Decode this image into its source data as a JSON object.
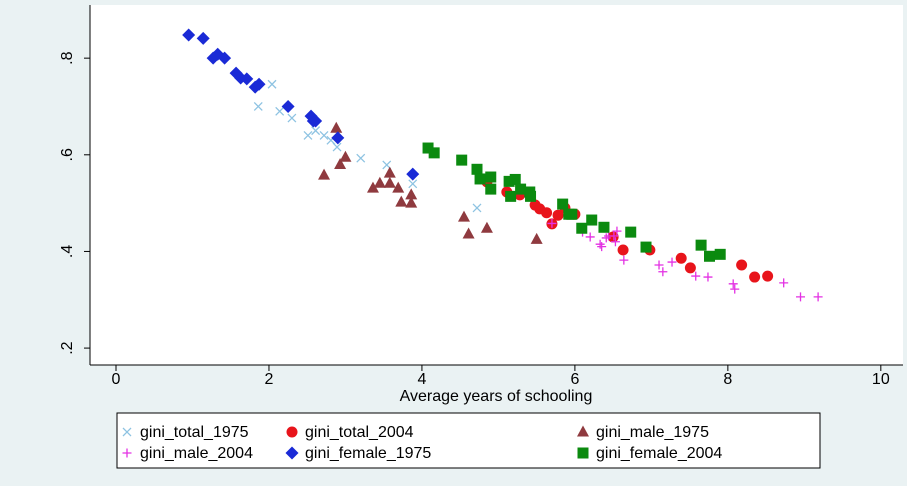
{
  "chart_data": {
    "type": "scatter",
    "x_label": "Average years of schooling",
    "xlim": [
      -0.34,
      10.29
    ],
    "ylim": [
      0.165,
      0.91
    ],
    "xticks": [
      0,
      2,
      4,
      6,
      8,
      10
    ],
    "yticks": [
      {
        "value": 0.2,
        "label": ".2"
      },
      {
        "value": 0.4,
        "label": ".4"
      },
      {
        "value": 0.6,
        "label": ".6"
      },
      {
        "value": 0.8,
        "label": ".8"
      }
    ],
    "grid": false,
    "legend": "bottom",
    "series": [
      {
        "name": "gini_total_1975",
        "color": "#8ec3e2",
        "marker": "x",
        "x": [
          1.86,
          2.04,
          2.14,
          2.3,
          2.51,
          2.61,
          2.72,
          2.81,
          2.89,
          3.2,
          3.54,
          3.88,
          4.72
        ],
        "y": [
          0.7,
          0.746,
          0.69,
          0.676,
          0.64,
          0.65,
          0.64,
          0.63,
          0.616,
          0.593,
          0.579,
          0.54,
          0.49
        ]
      },
      {
        "name": "gini_total_2004",
        "color": "#e8141b",
        "marker": "circle",
        "x": [
          4.85,
          5.11,
          5.28,
          5.48,
          5.54,
          5.63,
          5.7,
          5.78,
          5.87,
          6.0,
          6.5,
          6.63,
          6.98,
          7.39,
          7.51,
          8.18,
          8.35,
          8.52
        ],
        "y": [
          0.544,
          0.523,
          0.517,
          0.496,
          0.488,
          0.48,
          0.457,
          0.475,
          0.49,
          0.477,
          0.43,
          0.403,
          0.403,
          0.386,
          0.366,
          0.372,
          0.347,
          0.349
        ]
      },
      {
        "name": "gini_male_1975",
        "color": "#8f3a3f",
        "marker": "triangle",
        "x": [
          2.88,
          3.0,
          2.93,
          2.72,
          3.36,
          3.45,
          3.58,
          3.58,
          3.69,
          3.73,
          3.86,
          3.86,
          4.55,
          4.61,
          4.85,
          5.5
        ],
        "y": [
          0.655,
          0.595,
          0.58,
          0.558,
          0.531,
          0.541,
          0.562,
          0.541,
          0.531,
          0.502,
          0.517,
          0.5,
          0.471,
          0.436,
          0.448,
          0.425
        ]
      },
      {
        "name": "gini_male_2004",
        "color": "#e331e3",
        "marker": "plus",
        "x": [
          5.7,
          6.1,
          6.2,
          6.33,
          6.35,
          6.41,
          6.44,
          6.51,
          6.55,
          6.53,
          6.64,
          7.1,
          7.15,
          7.27,
          7.58,
          7.74,
          8.07,
          8.09,
          8.73,
          8.95,
          9.18
        ],
        "y": [
          0.458,
          0.44,
          0.43,
          0.415,
          0.41,
          0.428,
          0.432,
          0.432,
          0.442,
          0.42,
          0.382,
          0.372,
          0.358,
          0.378,
          0.349,
          0.347,
          0.333,
          0.322,
          0.335,
          0.306,
          0.306
        ]
      },
      {
        "name": "gini_female_1975",
        "color": "#1a2ad6",
        "marker": "diamond",
        "x": [
          0.95,
          1.14,
          1.27,
          1.33,
          1.42,
          1.57,
          1.63,
          1.71,
          1.82,
          1.87,
          2.25,
          2.55,
          2.58,
          2.61,
          2.9,
          3.88
        ],
        "y": [
          0.848,
          0.841,
          0.8,
          0.808,
          0.8,
          0.769,
          0.759,
          0.757,
          0.74,
          0.746,
          0.7,
          0.68,
          0.67,
          0.67,
          0.635,
          0.56
        ]
      },
      {
        "name": "gini_female_2004",
        "color": "#0b8a0f",
        "marker": "square",
        "x": [
          4.08,
          4.16,
          4.52,
          4.72,
          4.76,
          4.9,
          4.9,
          5.14,
          5.22,
          5.16,
          5.29,
          5.41,
          5.42,
          5.84,
          5.92,
          5.96,
          6.09,
          6.22,
          6.38,
          6.73,
          6.93,
          7.65,
          7.76,
          7.9
        ],
        "y": [
          0.614,
          0.604,
          0.589,
          0.57,
          0.55,
          0.554,
          0.529,
          0.545,
          0.549,
          0.514,
          0.529,
          0.523,
          0.514,
          0.498,
          0.477,
          0.477,
          0.448,
          0.465,
          0.45,
          0.44,
          0.409,
          0.413,
          0.39,
          0.394
        ]
      }
    ]
  }
}
